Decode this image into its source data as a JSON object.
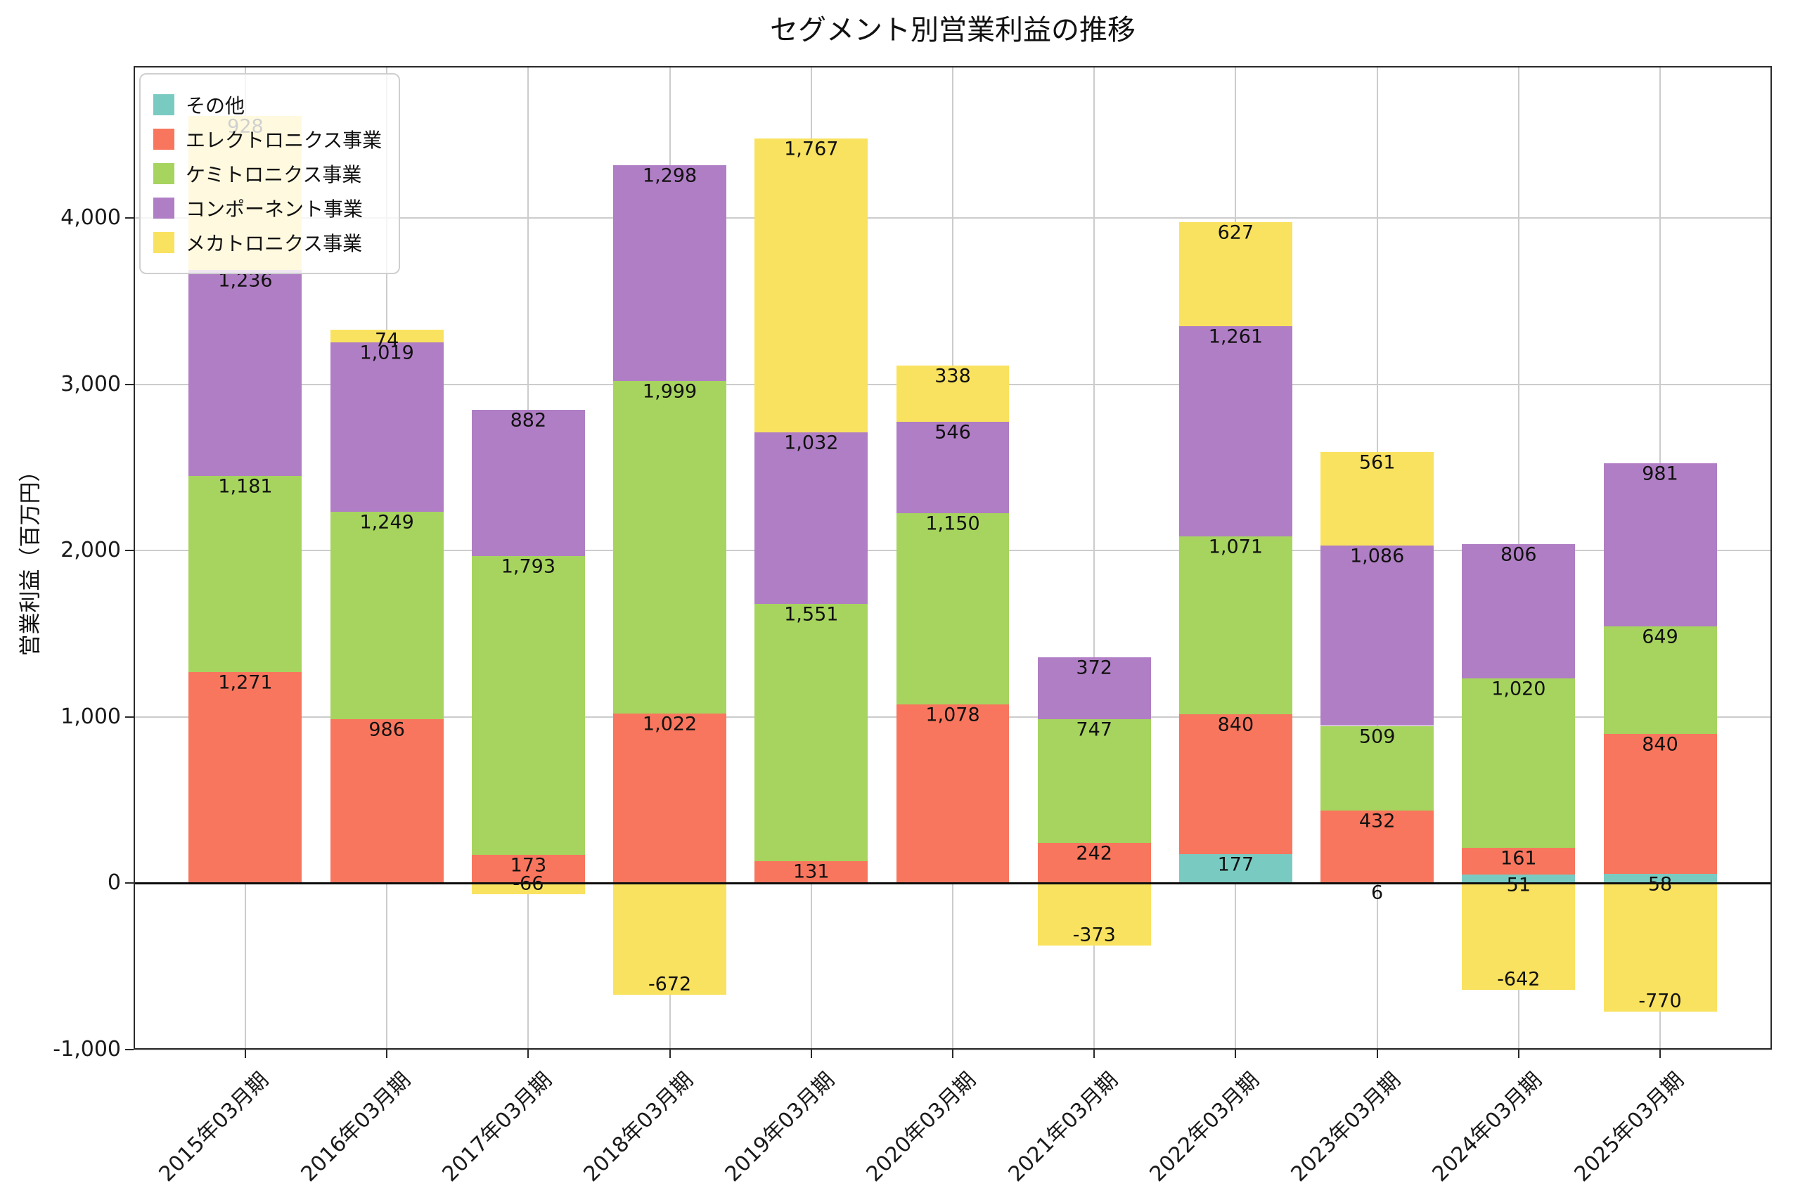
{
  "chart_data": {
    "type": "bar",
    "stacked": true,
    "title": "セグメント別営業利益の推移",
    "ylabel": "営業利益（百万円）",
    "categories": [
      "2015年03月期",
      "2016年03月期",
      "2017年03月期",
      "2018年03月期",
      "2019年03月期",
      "2020年03月期",
      "2021年03月期",
      "2022年03月期",
      "2023年03月期",
      "2024年03月期",
      "2025年03月期"
    ],
    "series": [
      {
        "name": "その他",
        "color": "#79CBC2",
        "values": [
          null,
          null,
          null,
          null,
          null,
          null,
          null,
          177,
          6,
          51,
          58
        ]
      },
      {
        "name": "エレクトロニクス事業",
        "color": "#F8765D",
        "values": [
          1271,
          986,
          173,
          1022,
          131,
          1078,
          242,
          840,
          432,
          161,
          840
        ]
      },
      {
        "name": "ケミトロニクス事業",
        "color": "#A6D45F",
        "values": [
          1181,
          1249,
          1793,
          1999,
          1551,
          1150,
          747,
          1071,
          509,
          1020,
          649
        ]
      },
      {
        "name": "コンポーネント事業",
        "color": "#B07EC4",
        "values": [
          1236,
          1019,
          882,
          1298,
          1032,
          546,
          372,
          1261,
          1086,
          806,
          981
        ]
      },
      {
        "name": "メカトロニクス事業",
        "color": "#F9E25F",
        "values": [
          928,
          74,
          -66,
          -672,
          1767,
          338,
          -373,
          627,
          561,
          -642,
          -770
        ]
      }
    ],
    "ylim": [
      -1000,
      4915
    ],
    "yticks": [
      -1000,
      0,
      1000,
      2000,
      3000,
      4000
    ],
    "grid": true,
    "zero_line": true,
    "legend_position": "upper left",
    "colors": {
      "grid": "#cccccc",
      "spine": "#2a2a2a",
      "zero_line": "#0d0d0d",
      "text": "#111111"
    }
  }
}
